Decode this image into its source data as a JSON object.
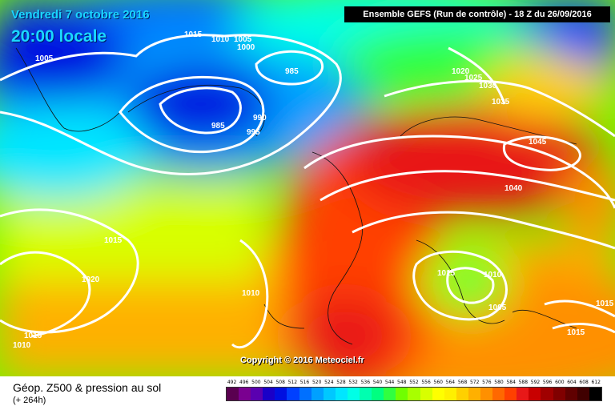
{
  "header": {
    "date": "Vendredi 7 octobre 2016",
    "time": "20:00 locale",
    "run_info": "Ensemble GEFS  (Run de contrôle)  -  18 Z du 26/09/2016"
  },
  "map": {
    "copyright": "Copyright © 2016 Meteociel.fr",
    "isobars": {
      "p1015a": "1015",
      "p1010a": "1010",
      "p1005a": "1005",
      "p1000a": "1000",
      "p985a": "985",
      "p985b": "985",
      "p990": "990",
      "p995": "995",
      "p1005b": "1005",
      "p1020a": "1020",
      "p1025": "1025",
      "p1030": "1030",
      "p1035": "1035",
      "p1045": "1045",
      "p1040": "1040",
      "p1015b": "1015",
      "p1020b": "1020",
      "p1010b": "1010",
      "p1015c": "1015",
      "p1010c": "1010",
      "p1015d": "1015",
      "p1010d": "1010",
      "p1005c": "1005",
      "p1015e": "1015",
      "p1015f": "1015"
    }
  },
  "footer": {
    "title": "Géop. Z500 & pression au sol",
    "subtitle": "(+ 264h)"
  },
  "legend": {
    "labels": [
      "492",
      "496",
      "500",
      "504",
      "508",
      "512",
      "516",
      "520",
      "524",
      "528",
      "532",
      "536",
      "540",
      "544",
      "548",
      "552",
      "556",
      "560",
      "564",
      "568",
      "572",
      "576",
      "580",
      "584",
      "588",
      "592",
      "596",
      "600",
      "604",
      "608",
      "612"
    ],
    "colors": [
      "#5a0050",
      "#7a0090",
      "#5a00b0",
      "#1a00c8",
      "#0010e0",
      "#0040ff",
      "#0070ff",
      "#00a0ff",
      "#00c8ff",
      "#00e6ff",
      "#00ffe6",
      "#00ffb0",
      "#00ff80",
      "#30ff40",
      "#70ff00",
      "#a8ff00",
      "#d8ff00",
      "#ffff00",
      "#fff000",
      "#ffd000",
      "#ffb000",
      "#ff9000",
      "#ff6800",
      "#ff4000",
      "#e81818",
      "#c80000",
      "#a00000",
      "#800000",
      "#600000",
      "#400000",
      "#000000"
    ]
  },
  "colors": {
    "low": "#0010e0",
    "high": "#e81818",
    "isobar": "#ffffff"
  }
}
